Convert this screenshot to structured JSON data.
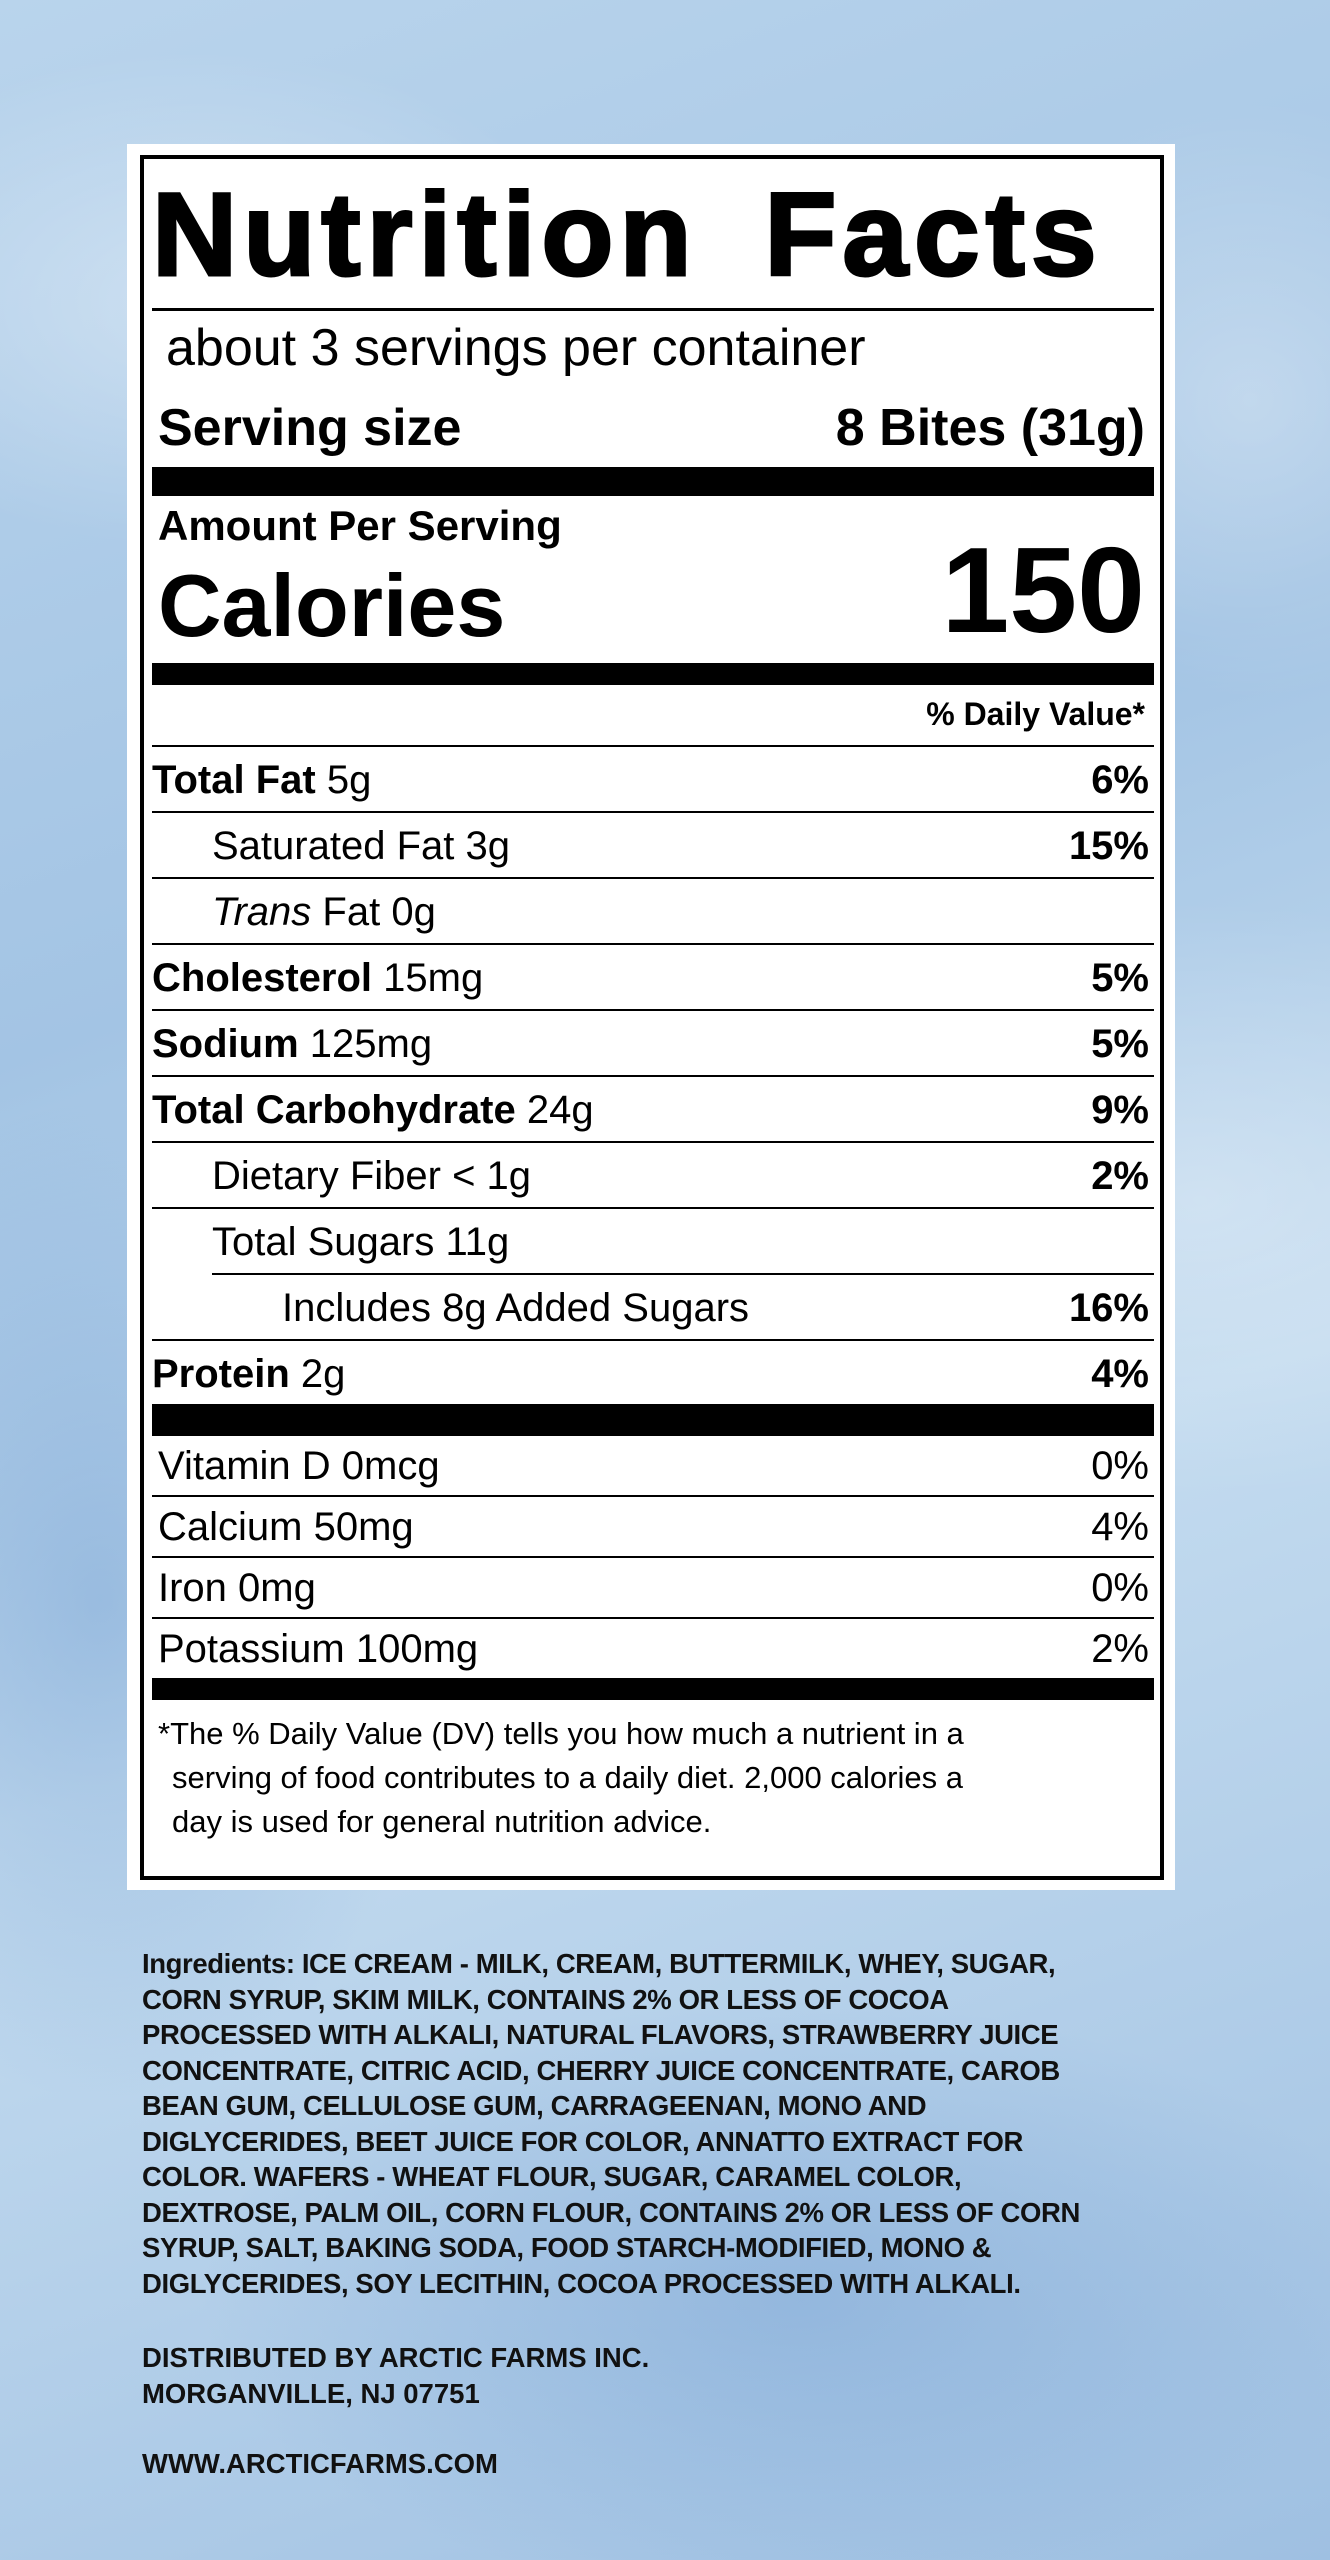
{
  "label": {
    "title": "Nutrition Facts",
    "servings_per_container": "about 3 servings per container",
    "serving_size_label": "Serving size",
    "serving_size_value": "8 Bites (31g)",
    "amount_per_serving": "Amount Per Serving",
    "calories_label": "Calories",
    "calories_value": "150",
    "dv_header": "% Daily Value*",
    "nutrients": [
      {
        "name": "Total Fat",
        "amount": "5g",
        "dv": "6%"
      },
      {
        "name": "Saturated Fat",
        "amount": "3g",
        "dv": "15%"
      },
      {
        "name": "Trans",
        "name_suffix": "Fat",
        "amount": "0g",
        "dv": ""
      },
      {
        "name": "Cholesterol",
        "amount": "15mg",
        "dv": "5%"
      },
      {
        "name": "Sodium",
        "amount": "125mg",
        "dv": "5%"
      },
      {
        "name": "Total Carbohydrate",
        "amount": "24g",
        "dv": "9%"
      },
      {
        "name": "Dietary Fiber",
        "amount": "< 1g",
        "dv": "2%"
      },
      {
        "name": "Total Sugars",
        "amount": "11g",
        "dv": ""
      },
      {
        "name": "Includes 8g Added Sugars",
        "amount": "",
        "dv": "16%"
      },
      {
        "name": "Protein",
        "amount": "2g",
        "dv": "4%"
      }
    ],
    "vitamins": [
      {
        "text": "Vitamin D 0mcg",
        "dv": "0%"
      },
      {
        "text": "Calcium 50mg",
        "dv": "4%"
      },
      {
        "text": "Iron 0mg",
        "dv": "0%"
      },
      {
        "text": "Potassium 100mg",
        "dv": "2%"
      }
    ],
    "footnote": [
      "*The % Daily Value (DV) tells you how much a nutrient in a",
      "serving of food contributes to a daily diet. 2,000 calories a",
      "day is used for general nutrition advice."
    ]
  },
  "ingredients": [
    "Ingredients: ICE CREAM - MILK, CREAM, BUTTERMILK, WHEY, SUGAR,",
    "CORN SYRUP, SKIM MILK, CONTAINS 2% OR LESS OF COCOA",
    "PROCESSED WITH ALKALI, NATURAL FLAVORS, STRAWBERRY JUICE",
    "CONCENTRATE, CITRIC ACID, CHERRY JUICE CONCENTRATE, CAROB",
    "BEAN GUM, CELLULOSE GUM, CARRAGEENAN, MONO AND",
    "DIGLYCERIDES, BEET JUICE FOR COLOR, ANNATTO EXTRACT FOR",
    "COLOR. WAFERS - WHEAT FLOUR, SUGAR, CARAMEL COLOR,",
    "DEXTROSE, PALM OIL, CORN FLOUR, CONTAINS 2% OR LESS OF CORN",
    "SYRUP, SALT, BAKING SODA, FOOD STARCH-MODIFIED, MONO &",
    "DIGLYCERIDES, SOY LECITHIN, COCOA PROCESSED WITH ALKALI."
  ],
  "distributor": [
    "DISTRIBUTED BY ARCTIC FARMS INC.",
    "MORGANVILLE, NJ 07751"
  ],
  "website": "WWW.ARCTICFARMS.COM"
}
